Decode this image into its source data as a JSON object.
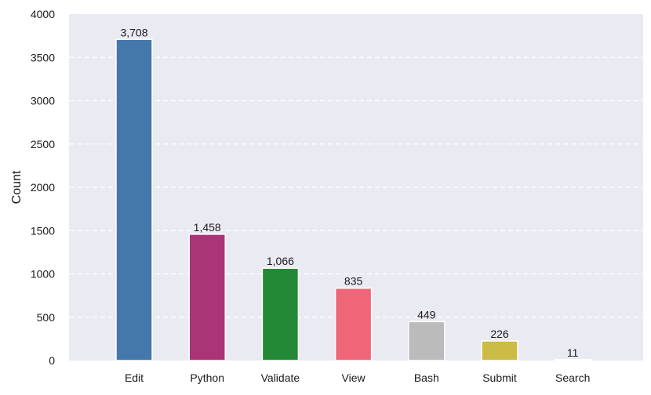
{
  "chart_data": {
    "type": "bar",
    "title": "",
    "xlabel": "",
    "ylabel": "Count",
    "ylim": [
      0,
      4000
    ],
    "yticks": [
      0,
      500,
      1000,
      1500,
      2000,
      2500,
      3000,
      3500,
      4000
    ],
    "grid": true,
    "categories": [
      "Edit",
      "Python",
      "Validate",
      "View",
      "Bash",
      "Submit",
      "Search"
    ],
    "values": [
      3708,
      1458,
      1066,
      835,
      449,
      226,
      11
    ],
    "value_labels": [
      "3,708",
      "1,458",
      "1,066",
      "835",
      "449",
      "226",
      "11"
    ],
    "colors": [
      "#4478aa",
      "#a93476",
      "#238936",
      "#ef6678",
      "#bbbbbb",
      "#ccbb44",
      "#e8e8ee"
    ],
    "background": "#eaeaf2"
  }
}
